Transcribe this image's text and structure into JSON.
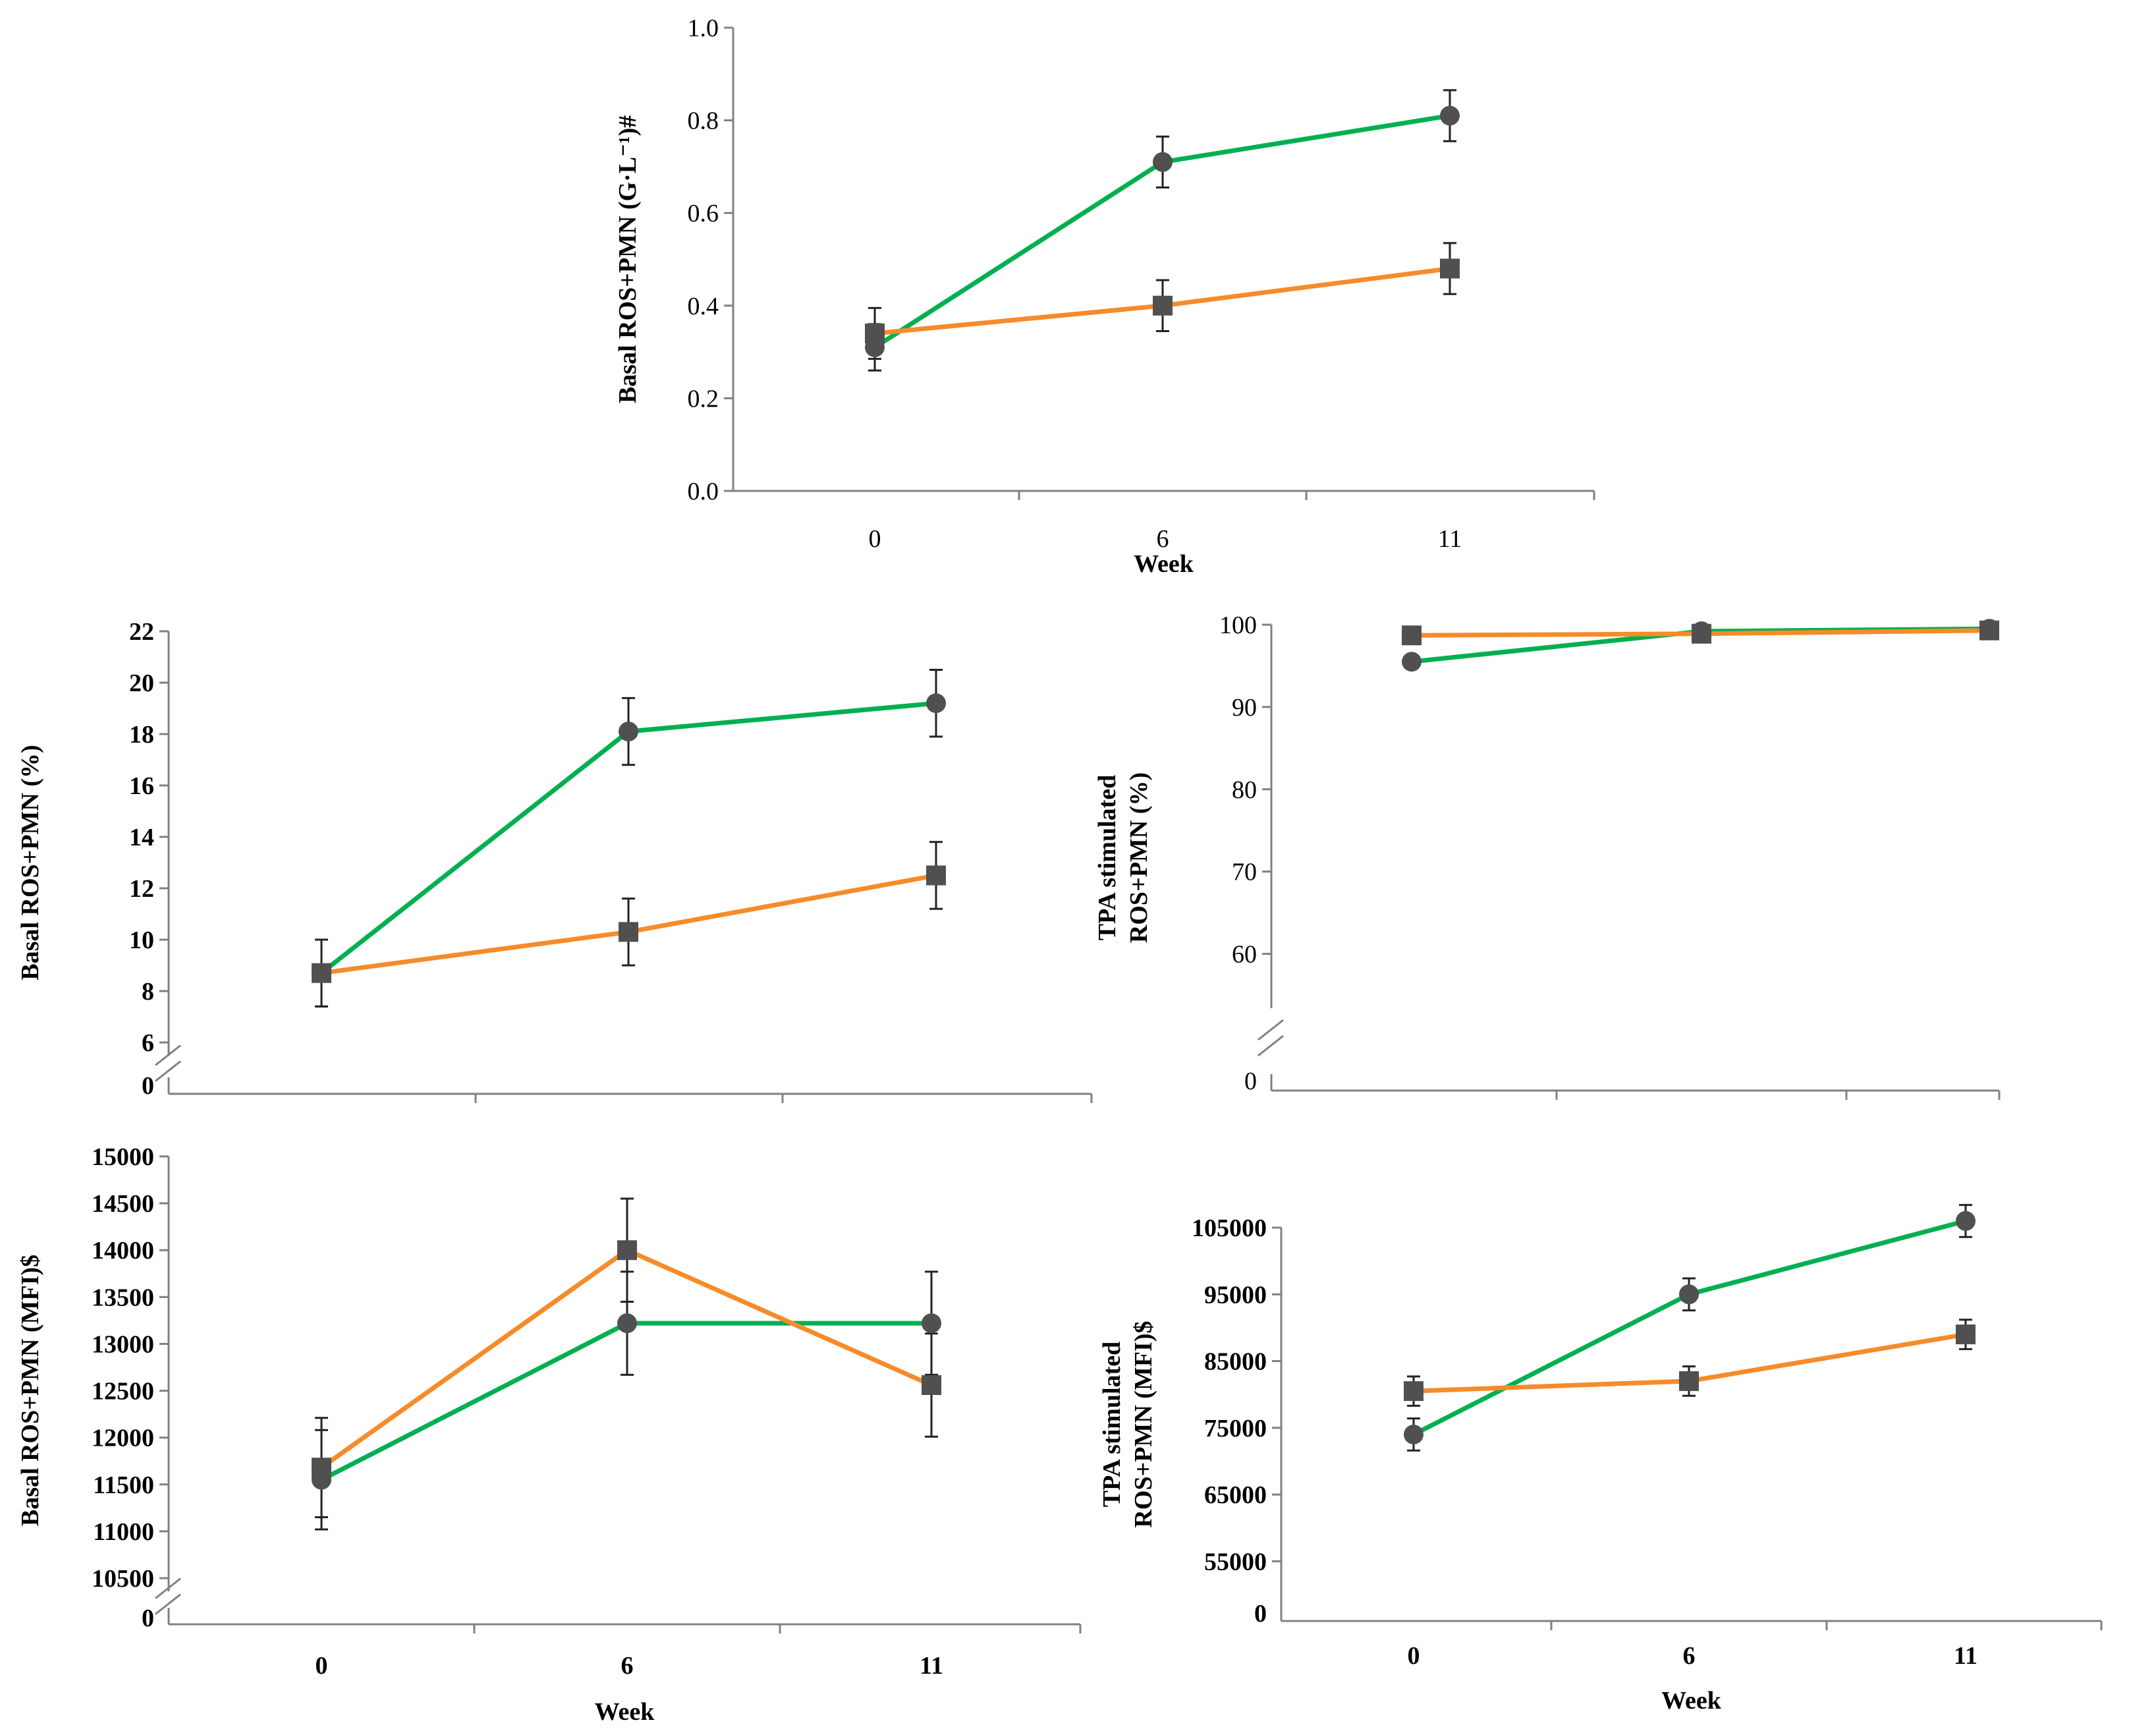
{
  "colors": {
    "green": "#00b050",
    "orange": "#f68b2a",
    "marker": "#505050"
  },
  "chart_data": [
    {
      "type": "line",
      "ylabel": "Basal ROS+PMN (G·L⁻¹)#",
      "xlabel": "Week",
      "categories": [
        "0",
        "6",
        "11"
      ],
      "yticks": [
        "0.0",
        "0.2",
        "0.4",
        "0.6",
        "0.8",
        "1.0"
      ],
      "ylim": [
        0,
        1.0
      ],
      "series": [
        {
          "name": "green",
          "marker": "circle",
          "values": [
            0.31,
            0.71,
            0.81
          ],
          "errors": [
            0.05,
            0.055,
            0.055
          ]
        },
        {
          "name": "orange",
          "marker": "square",
          "values": [
            0.34,
            0.4,
            0.48
          ],
          "errors": [
            0.055,
            0.055,
            0.055
          ]
        }
      ]
    },
    {
      "type": "line",
      "ylabel": "Basal ROS+PMN (%)",
      "xlabel": "",
      "categories": [
        "",
        "",
        ""
      ],
      "yticks": [
        "6",
        "8",
        "10",
        "12",
        "14",
        "16",
        "18",
        "20",
        "22"
      ],
      "zero_label": "0",
      "ylim": [
        6,
        22
      ],
      "series": [
        {
          "name": "green",
          "marker": "circle",
          "values": [
            8.7,
            18.1,
            19.2
          ],
          "errors": [
            1.3,
            1.3,
            1.3
          ]
        },
        {
          "name": "orange",
          "marker": "square",
          "values": [
            8.7,
            10.3,
            12.5
          ],
          "errors": [
            1.3,
            1.3,
            1.3
          ]
        }
      ]
    },
    {
      "type": "line",
      "ylabel": "TPA stimulated ROS+PMN (%)",
      "ylabel_lines": [
        "TPA stimulated",
        "ROS+PMN (%)"
      ],
      "xlabel": "",
      "categories": [
        "",
        "",
        ""
      ],
      "yticks": [
        "60",
        "70",
        "80",
        "90",
        "100"
      ],
      "zero_label": "0",
      "ylim": [
        55,
        100
      ],
      "series": [
        {
          "name": "green",
          "marker": "circle",
          "values": [
            95.5,
            99.2,
            99.5
          ],
          "errors": [
            0.6,
            0.6,
            0.5
          ]
        },
        {
          "name": "orange",
          "marker": "square",
          "values": [
            98.7,
            98.9,
            99.3
          ],
          "errors": [
            0.6,
            0.6,
            0.5
          ]
        }
      ]
    },
    {
      "type": "line",
      "ylabel": "Basal ROS+PMN (MFI)$",
      "xlabel": "Week",
      "categories": [
        "0",
        "6",
        "11"
      ],
      "yticks": [
        "10500",
        "11000",
        "11500",
        "12000",
        "12500",
        "13000",
        "13500",
        "14000",
        "14500",
        "15000"
      ],
      "zero_label": "0",
      "ylim": [
        10500,
        15000
      ],
      "series": [
        {
          "name": "green",
          "marker": "circle",
          "values": [
            11550,
            13220,
            13220
          ],
          "errors": [
            530,
            550,
            550
          ]
        },
        {
          "name": "orange",
          "marker": "square",
          "values": [
            11680,
            14000,
            12560
          ],
          "errors": [
            530,
            550,
            550
          ]
        }
      ]
    },
    {
      "type": "line",
      "ylabel": "TPA stimulated ROS+PMN (MFI)$",
      "ylabel_lines": [
        "TPA stimulated",
        "ROS+PMN (MFI)$"
      ],
      "xlabel": "Week",
      "categories": [
        "0",
        "6",
        "11"
      ],
      "yticks": [
        "55000",
        "65000",
        "75000",
        "85000",
        "95000",
        "105000"
      ],
      "zero_label": "0",
      "ylim": [
        50000,
        113000
      ],
      "series": [
        {
          "name": "green",
          "marker": "circle",
          "values": [
            74000,
            95000,
            106000
          ],
          "errors": [
            2400,
            2400,
            2400
          ]
        },
        {
          "name": "orange",
          "marker": "square",
          "values": [
            80500,
            82000,
            89000
          ],
          "errors": [
            2200,
            2200,
            2200
          ]
        }
      ]
    }
  ]
}
